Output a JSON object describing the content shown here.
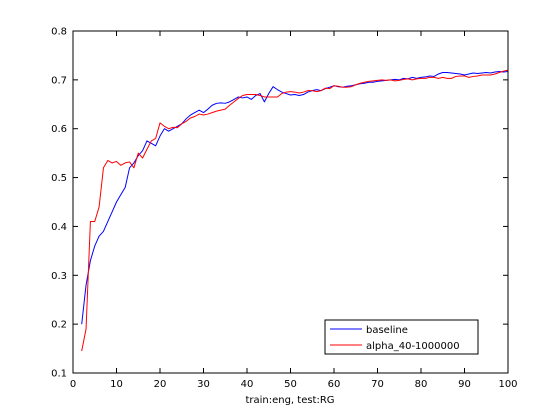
{
  "chart_data": {
    "type": "line",
    "title": "",
    "xlabel": "train:eng, test:RG",
    "ylabel": "",
    "xlim": [
      0,
      100
    ],
    "ylim": [
      0.1,
      0.8
    ],
    "xticks": [
      0,
      10,
      20,
      30,
      40,
      50,
      60,
      70,
      80,
      90,
      100
    ],
    "yticks": [
      0.1,
      0.2,
      0.3,
      0.4,
      0.5,
      0.6,
      0.7,
      0.8
    ],
    "xtick_labels": [
      "0",
      "10",
      "20",
      "30",
      "40",
      "50",
      "60",
      "70",
      "80",
      "90",
      "100"
    ],
    "ytick_labels": [
      "0.1",
      "0.2",
      "0.3",
      "0.4",
      "0.5",
      "0.6",
      "0.7",
      "0.8"
    ],
    "grid": false,
    "legend_position": "bottom-right",
    "colors": {
      "background": "#ffffff",
      "axis": "#000000"
    },
    "series": [
      {
        "name": "baseline",
        "color": "#0000ff",
        "x": [
          2,
          3,
          4,
          5,
          6,
          7,
          8,
          9,
          10,
          11,
          12,
          13,
          14,
          15,
          16,
          17,
          18,
          19,
          20,
          21,
          22,
          23,
          24,
          25,
          26,
          27,
          28,
          29,
          30,
          31,
          32,
          33,
          34,
          35,
          36,
          37,
          38,
          39,
          40,
          41,
          42,
          43,
          44,
          45,
          46,
          47,
          48,
          49,
          50,
          51,
          52,
          53,
          54,
          55,
          56,
          57,
          58,
          59,
          60,
          61,
          62,
          63,
          64,
          65,
          66,
          67,
          68,
          69,
          70,
          71,
          72,
          73,
          74,
          75,
          76,
          77,
          78,
          79,
          80,
          81,
          82,
          83,
          84,
          85,
          86,
          87,
          88,
          89,
          90,
          91,
          92,
          93,
          94,
          95,
          96,
          97,
          98,
          99,
          100
        ],
        "y": [
          0.2,
          0.28,
          0.33,
          0.36,
          0.38,
          0.39,
          0.41,
          0.43,
          0.45,
          0.465,
          0.48,
          0.52,
          0.53,
          0.545,
          0.555,
          0.575,
          0.57,
          0.565,
          0.585,
          0.6,
          0.595,
          0.6,
          0.605,
          0.61,
          0.62,
          0.628,
          0.633,
          0.638,
          0.633,
          0.64,
          0.648,
          0.652,
          0.653,
          0.652,
          0.655,
          0.66,
          0.665,
          0.663,
          0.665,
          0.66,
          0.668,
          0.672,
          0.655,
          0.672,
          0.686,
          0.68,
          0.675,
          0.672,
          0.669,
          0.67,
          0.668,
          0.67,
          0.675,
          0.678,
          0.68,
          0.678,
          0.682,
          0.685,
          0.688,
          0.686,
          0.685,
          0.687,
          0.688,
          0.69,
          0.692,
          0.693,
          0.695,
          0.695,
          0.697,
          0.698,
          0.699,
          0.7,
          0.701,
          0.7,
          0.703,
          0.702,
          0.705,
          0.703,
          0.705,
          0.706,
          0.708,
          0.707,
          0.712,
          0.715,
          0.715,
          0.714,
          0.713,
          0.712,
          0.71,
          0.712,
          0.714,
          0.713,
          0.714,
          0.715,
          0.714,
          0.716,
          0.717,
          0.716,
          0.717
        ]
      },
      {
        "name": "alpha_40-1000000",
        "color": "#ff0000",
        "x": [
          2,
          3,
          4,
          5,
          6,
          7,
          8,
          9,
          10,
          11,
          12,
          13,
          14,
          15,
          16,
          17,
          18,
          19,
          20,
          21,
          22,
          23,
          24,
          25,
          26,
          27,
          28,
          29,
          30,
          31,
          32,
          33,
          34,
          35,
          36,
          37,
          38,
          39,
          40,
          41,
          42,
          43,
          44,
          45,
          46,
          47,
          48,
          49,
          50,
          51,
          52,
          53,
          54,
          55,
          56,
          57,
          58,
          59,
          60,
          61,
          62,
          63,
          64,
          65,
          66,
          67,
          68,
          69,
          70,
          71,
          72,
          73,
          74,
          75,
          76,
          77,
          78,
          79,
          80,
          81,
          82,
          83,
          84,
          85,
          86,
          87,
          88,
          89,
          90,
          91,
          92,
          93,
          94,
          95,
          96,
          97,
          98,
          99,
          100
        ],
        "y": [
          0.145,
          0.19,
          0.41,
          0.41,
          0.44,
          0.52,
          0.535,
          0.53,
          0.533,
          0.525,
          0.53,
          0.532,
          0.52,
          0.55,
          0.54,
          0.558,
          0.575,
          0.58,
          0.612,
          0.605,
          0.6,
          0.603,
          0.602,
          0.61,
          0.615,
          0.622,
          0.625,
          0.63,
          0.628,
          0.63,
          0.633,
          0.636,
          0.638,
          0.64,
          0.648,
          0.655,
          0.662,
          0.668,
          0.67,
          0.67,
          0.67,
          0.668,
          0.665,
          0.665,
          0.665,
          0.665,
          0.672,
          0.675,
          0.676,
          0.675,
          0.673,
          0.675,
          0.678,
          0.678,
          0.676,
          0.678,
          0.683,
          0.682,
          0.688,
          0.687,
          0.685,
          0.685,
          0.686,
          0.69,
          0.693,
          0.695,
          0.697,
          0.698,
          0.699,
          0.7,
          0.699,
          0.7,
          0.698,
          0.699,
          0.701,
          0.702,
          0.7,
          0.702,
          0.703,
          0.703,
          0.705,
          0.705,
          0.703,
          0.705,
          0.703,
          0.703,
          0.707,
          0.708,
          0.708,
          0.705,
          0.707,
          0.708,
          0.71,
          0.71,
          0.71,
          0.712,
          0.715,
          0.718,
          0.72
        ]
      }
    ]
  }
}
